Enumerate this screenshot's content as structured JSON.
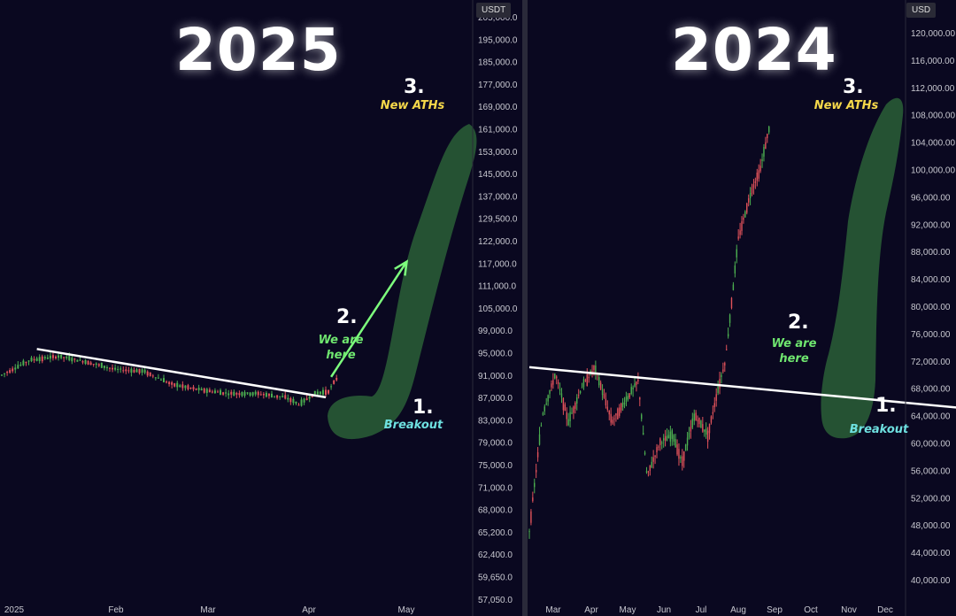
{
  "left": {
    "year_title": "2025",
    "currency": "USDT",
    "y_ticks": [
      "205,000.0",
      "195,000.0",
      "185,000.0",
      "177,000.0",
      "169,000.0",
      "161,000.0",
      "153,000.0",
      "145,000.0",
      "137,000.0",
      "129,500.0",
      "122,000.0",
      "117,000.0",
      "111,000.0",
      "105,000.0",
      "99,000.0",
      "95,000.0",
      "91,000.0",
      "87,000.0",
      "83,000.0",
      "79,000.0",
      "75,000.0",
      "71,000.0",
      "68,000.0",
      "65,200.0",
      "62,400.0",
      "59,650.0",
      "57,050.0"
    ],
    "x_ticks": [
      "2025",
      "Feb",
      "Mar",
      "Apr",
      "May"
    ],
    "annotations": {
      "step1_num": "1.",
      "step1_text": "Breakout",
      "step2_num": "2.",
      "step2_text_a": "We are",
      "step2_text_b": "here",
      "step3_num": "3.",
      "step3_text": "New ATHs"
    }
  },
  "right": {
    "year_title": "2024",
    "currency": "USD",
    "y_ticks": [
      "120,000.00",
      "116,000.00",
      "112,000.00",
      "108,000.00",
      "104,000.00",
      "100,000.00",
      "96,000.00",
      "92,000.00",
      "88,000.00",
      "84,000.00",
      "80,000.00",
      "76,000.00",
      "72,000.00",
      "68,000.00",
      "64,000.00",
      "60,000.00",
      "56,000.00",
      "52,000.00",
      "48,000.00",
      "44,000.00",
      "40,000.00"
    ],
    "x_ticks": [
      "Mar",
      "Apr",
      "May",
      "Jun",
      "Jul",
      "Aug",
      "Sep",
      "Oct",
      "Nov",
      "Dec"
    ],
    "annotations": {
      "step1_num": "1.",
      "step1_text": "Breakout",
      "step2_num": "2.",
      "step2_text_a": "We are",
      "step2_text_b": "here",
      "step3_num": "3.",
      "step3_text": "New ATHs"
    }
  },
  "colors": {
    "up": "#4caf50",
    "down": "#e0525a",
    "zone": "#2f6b3a",
    "arrow": "#7dff7d",
    "trend": "#ffffff",
    "step3": "#f5d84a",
    "step2": "#6fe66f",
    "step1": "#6ee0e0"
  },
  "chart_data": [
    {
      "type": "candlestick",
      "title": "2025",
      "currency": "USDT",
      "x_ticks": [
        "2025",
        "Feb",
        "Mar",
        "Apr",
        "May"
      ],
      "approx_close_path": [
        [
          0,
          94000
        ],
        [
          10,
          102000
        ],
        [
          20,
          104000
        ],
        [
          30,
          101000
        ],
        [
          40,
          97000
        ],
        [
          50,
          96000
        ],
        [
          60,
          89000
        ],
        [
          70,
          86000
        ],
        [
          80,
          84000
        ],
        [
          90,
          84000
        ],
        [
          100,
          82000
        ],
        [
          105,
          78000
        ],
        [
          110,
          84000
        ],
        [
          115,
          85000
        ],
        [
          118,
          92000
        ]
      ],
      "trendline": [
        [
          13,
          108000
        ],
        [
          120,
          82000
        ]
      ],
      "projection": [
        [
          122,
          93000
        ],
        [
          150,
          155000
        ]
      ],
      "annotations": [
        "1. Breakout",
        "2. We are here",
        "3. New ATHs"
      ]
    },
    {
      "type": "candlestick",
      "title": "2024",
      "currency": "USD",
      "x_ticks": [
        "Mar",
        "Apr",
        "May",
        "Jun",
        "Jul",
        "Aug",
        "Sep",
        "Oct",
        "Nov",
        "Dec"
      ],
      "approx_close_path": [
        [
          0,
          47000
        ],
        [
          15,
          64000
        ],
        [
          30,
          70000
        ],
        [
          45,
          63000
        ],
        [
          60,
          68000
        ],
        [
          75,
          71000
        ],
        [
          95,
          63000
        ],
        [
          110,
          66000
        ],
        [
          125,
          69000
        ],
        [
          135,
          55000
        ],
        [
          150,
          60000
        ],
        [
          165,
          61000
        ],
        [
          175,
          57000
        ],
        [
          190,
          64000
        ],
        [
          205,
          61000
        ],
        [
          215,
          67000
        ],
        [
          225,
          72000
        ],
        [
          240,
          90000
        ],
        [
          255,
          97000
        ],
        [
          265,
          100000
        ],
        [
          275,
          106000
        ]
      ],
      "trendline": [
        [
          0,
          71000
        ],
        [
          255,
          65000
        ]
      ],
      "annotations": [
        "1. Breakout",
        "2. We are here",
        "3. New ATHs"
      ]
    }
  ]
}
